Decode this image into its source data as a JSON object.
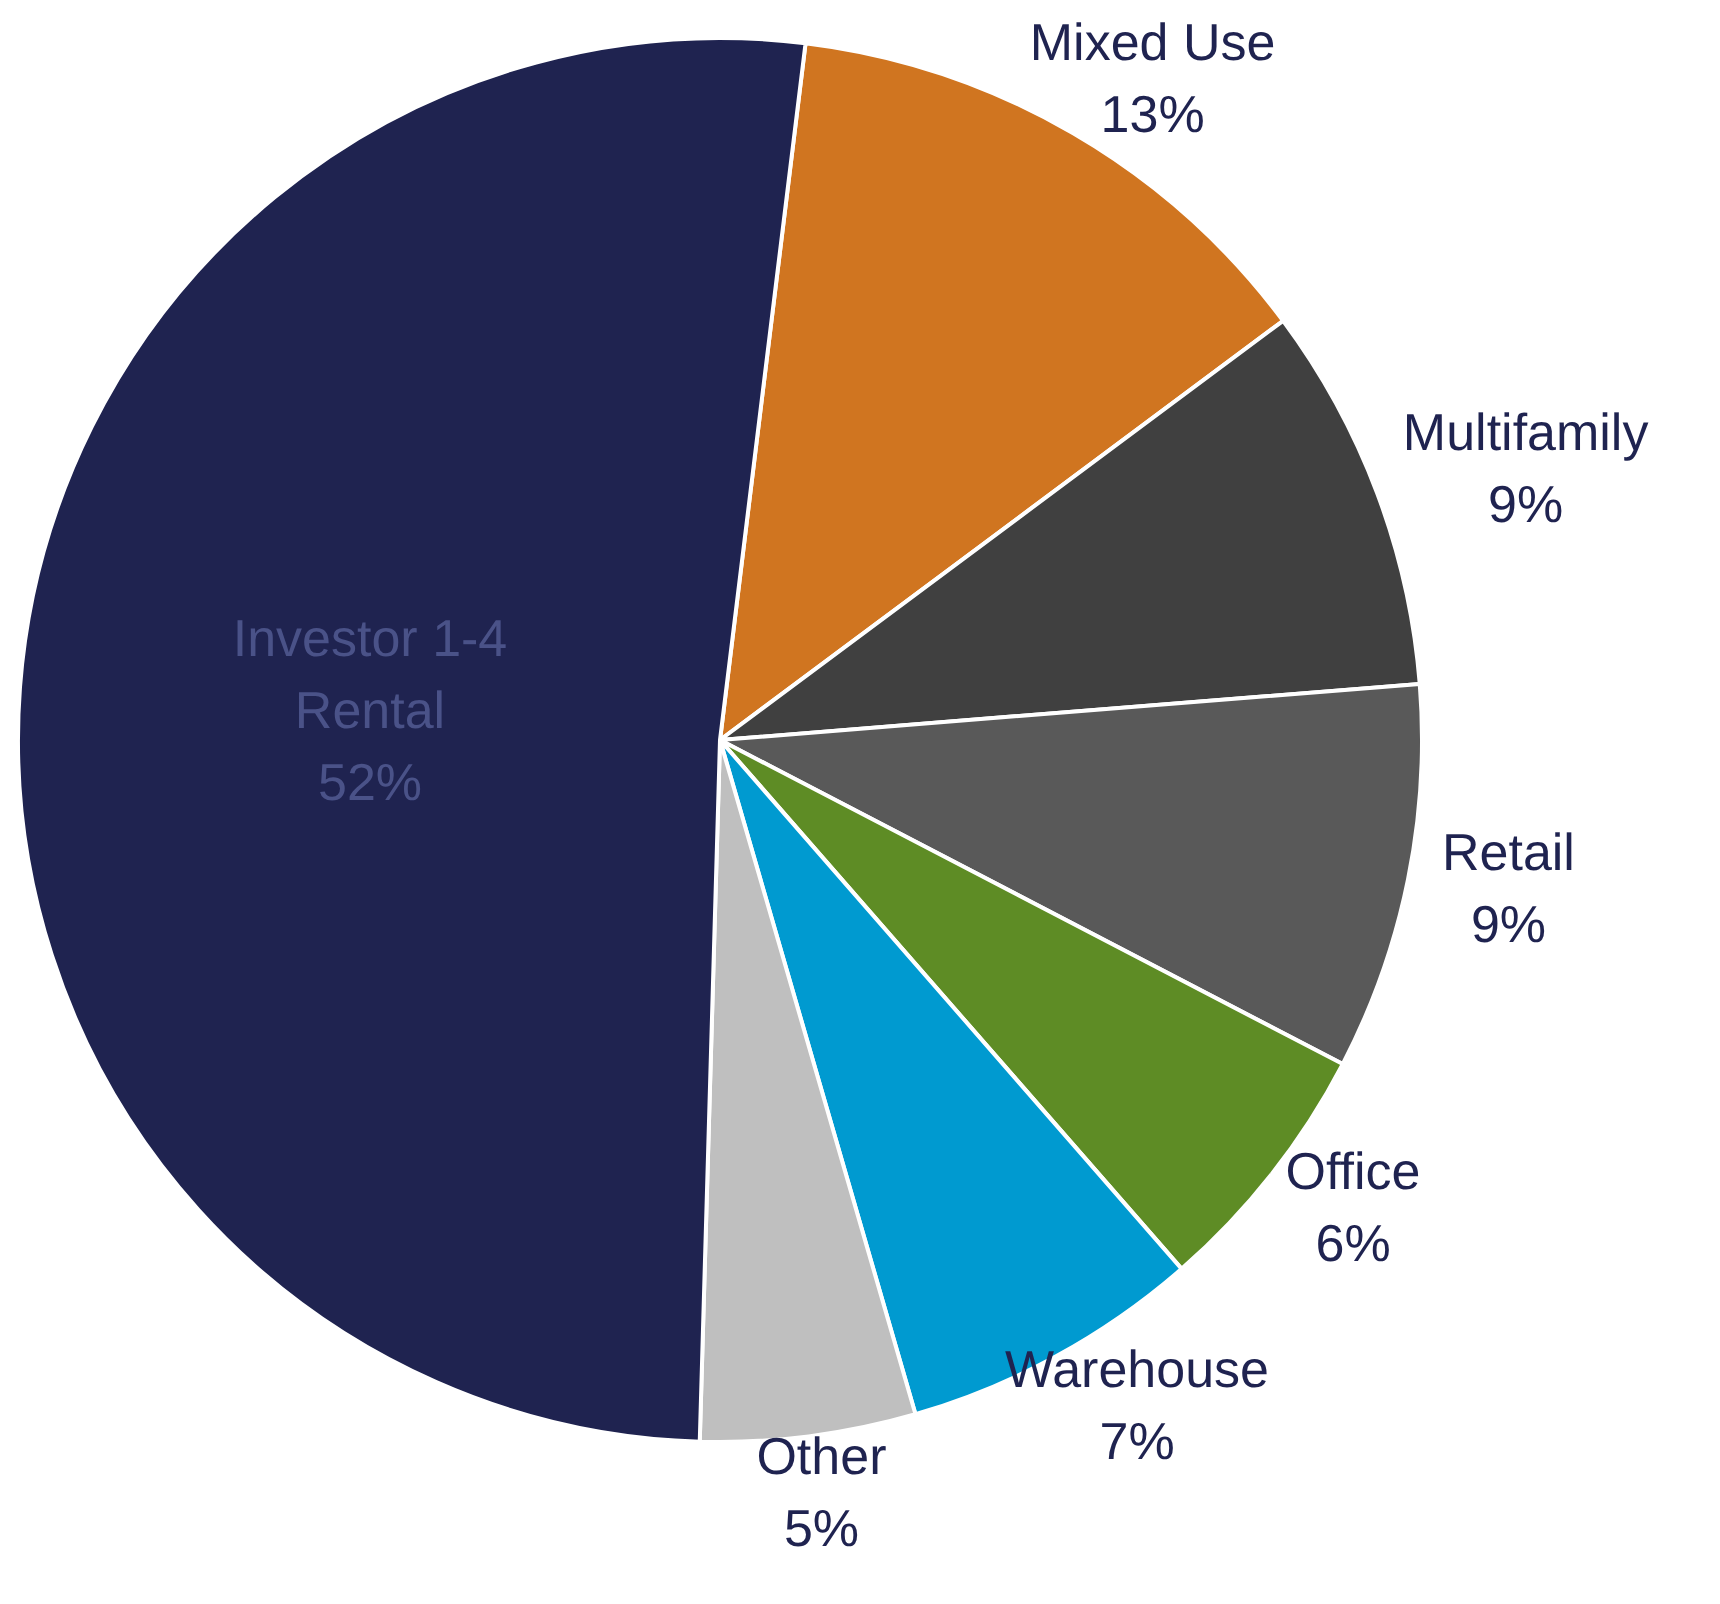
{
  "chart_data": {
    "type": "pie",
    "categories": [
      "Mixed Use",
      "Multifamily",
      "Retail",
      "Office",
      "Warehouse",
      "Other",
      "Investor 1-4 Rental"
    ],
    "values": [
      13,
      9,
      9,
      6,
      7,
      5,
      52
    ],
    "value_labels": [
      "13%",
      "9%",
      "9%",
      "6%",
      "7%",
      "5%",
      "52%"
    ],
    "colors": [
      "#d07520",
      "#404040",
      "#595959",
      "#5e8c25",
      "#009ad0",
      "#bfbfbf",
      "#1f2350"
    ],
    "legend": false
  }
}
